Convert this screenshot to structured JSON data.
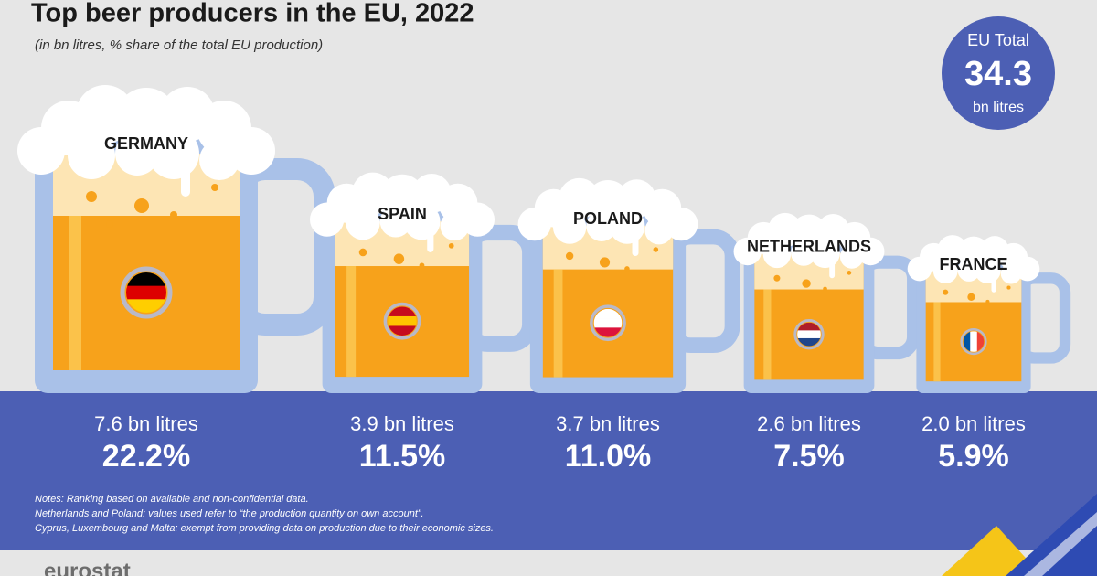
{
  "chart_data": {
    "type": "mug",
    "title": "Top beer producers in the EU, 2022",
    "subtitle": "(in bn litres, % share of the total EU production)",
    "categories": [
      "GERMANY",
      "SPAIN",
      "POLAND",
      "NETHERLANDS",
      "FRANCE"
    ],
    "values": [
      7.6,
      3.9,
      3.7,
      2.6,
      2.0
    ],
    "value_labels": [
      "7.6 bn litres",
      "3.9 bn litres",
      "3.7 bn litres",
      "2.6 bn litres",
      "2.0 bn litres"
    ],
    "shares": [
      22.2,
      11.5,
      11.0,
      7.5,
      5.9
    ],
    "share_labels": [
      "22.2%",
      "11.5%",
      "11.0%",
      "7.5%",
      "5.9%"
    ],
    "color": "#f7a21b",
    "total": {
      "label": "EU Total",
      "value": 34.3,
      "unit": "bn litres"
    },
    "notes": [
      "Notes: Ranking based on available and non-confidential data.",
      "Netherlands and Poland: values used refer to “the production quantity on own account”.",
      "Cyprus, Luxembourg and Malta: exempt from providing data on production due to their economic sizes."
    ],
    "footer": "eurostat"
  }
}
